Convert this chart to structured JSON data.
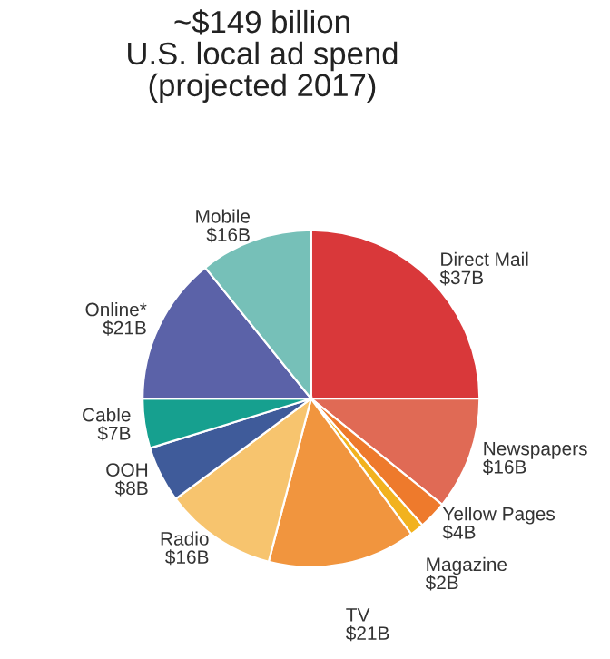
{
  "chart_data": {
    "type": "pie",
    "title": "~$149 billion\nU.S. local ad spend\n(projected 2017)",
    "categories": [
      "Direct Mail",
      "Newspapers",
      "Yellow Pages",
      "Magazine",
      "TV",
      "Radio",
      "OOH",
      "Cable",
      "Online*",
      "Mobile"
    ],
    "values": [
      37,
      16,
      4,
      2,
      21,
      16,
      8,
      7,
      21,
      16
    ],
    "value_labels": [
      "$37B",
      "$16B",
      "$4B",
      "$2B",
      "$21B",
      "$16B",
      "$8B",
      "$7B",
      "$21B",
      "$16B"
    ],
    "colors": [
      "#d9383a",
      "#e06a55",
      "#ee7a2c",
      "#f2b21e",
      "#f1953e",
      "#f7c46e",
      "#3f5b9a",
      "#16a08f",
      "#5b62a8",
      "#76c0b8"
    ]
  }
}
